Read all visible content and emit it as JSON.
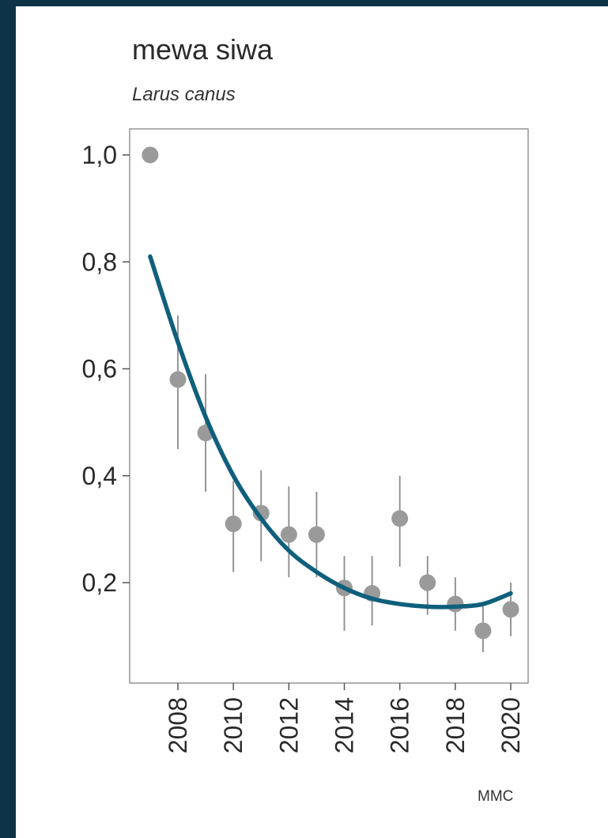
{
  "chart_data": {
    "type": "scatter",
    "title": "mewa siwa",
    "subtitle": "Larus canus",
    "credit": "MMC",
    "xlabel": "",
    "ylabel": "",
    "xlim": [
      2006.8,
      2020.6
    ],
    "ylim": [
      0.0,
      1.05
    ],
    "x_ticks": [
      2008,
      2010,
      2012,
      2014,
      2016,
      2018,
      2020
    ],
    "x_tick_labels": [
      "2008",
      "2010",
      "2012",
      "2014",
      "2016",
      "2018",
      "2020"
    ],
    "y_ticks": [
      0.2,
      0.4,
      0.6,
      0.8,
      1.0
    ],
    "y_tick_labels": [
      "0,2",
      "0,4",
      "0,6",
      "0,8",
      "1,0"
    ],
    "grid": false,
    "series": [
      {
        "type": "points_with_error_bars",
        "points": [
          {
            "x": 2007,
            "y": 1.0,
            "low": null,
            "high": null
          },
          {
            "x": 2008,
            "y": 0.58,
            "low": 0.45,
            "high": 0.7
          },
          {
            "x": 2009,
            "y": 0.48,
            "low": 0.37,
            "high": 0.59
          },
          {
            "x": 2010,
            "y": 0.31,
            "low": 0.22,
            "high": 0.39
          },
          {
            "x": 2011,
            "y": 0.33,
            "low": 0.24,
            "high": 0.41
          },
          {
            "x": 2012,
            "y": 0.29,
            "low": 0.21,
            "high": 0.38
          },
          {
            "x": 2013,
            "y": 0.29,
            "low": 0.21,
            "high": 0.37
          },
          {
            "x": 2014,
            "y": 0.19,
            "low": 0.11,
            "high": 0.25
          },
          {
            "x": 2015,
            "y": 0.18,
            "low": 0.12,
            "high": 0.25
          },
          {
            "x": 2016,
            "y": 0.32,
            "low": 0.23,
            "high": 0.4
          },
          {
            "x": 2017,
            "y": 0.2,
            "low": 0.14,
            "high": 0.25
          },
          {
            "x": 2018,
            "y": 0.16,
            "low": 0.11,
            "high": 0.21
          },
          {
            "x": 2019,
            "y": 0.11,
            "low": 0.07,
            "high": 0.16
          },
          {
            "x": 2020,
            "y": 0.15,
            "low": 0.1,
            "high": 0.2
          }
        ]
      },
      {
        "type": "trend_line",
        "x": [
          2007,
          2008,
          2009,
          2010,
          2011,
          2012,
          2013,
          2014,
          2015,
          2016,
          2017,
          2018,
          2019,
          2020
        ],
        "y": [
          0.81,
          0.65,
          0.51,
          0.4,
          0.32,
          0.26,
          0.22,
          0.19,
          0.17,
          0.16,
          0.155,
          0.155,
          0.16,
          0.18
        ]
      }
    ]
  },
  "colors": {
    "point": "#9a9a9a",
    "error_bar": "#8a8a8a",
    "trend_line": "#0f5f7c",
    "axis": "#7a7a7a",
    "text": "#2a2a2a"
  }
}
